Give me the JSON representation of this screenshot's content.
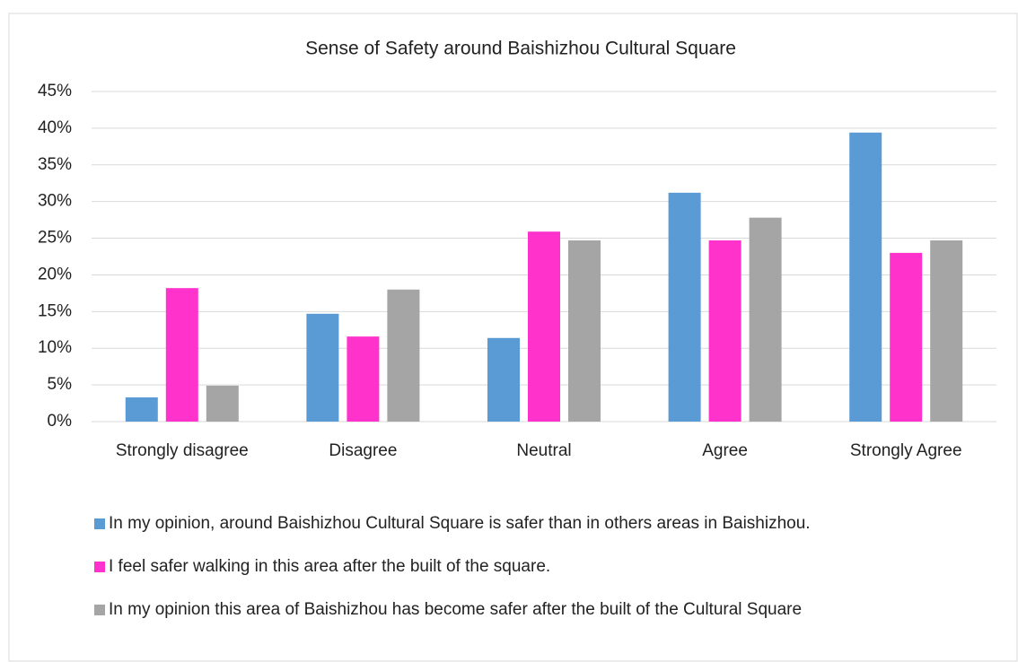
{
  "chart_data": {
    "type": "bar",
    "title": "Sense of Safety around Baishizhou Cultural Square",
    "categories": [
      "Strongly disagree",
      "Disagree",
      "Neutral",
      "Agree",
      "Strongly Agree"
    ],
    "series": [
      {
        "name": "In my opinion, around Baishizhou Cultural Square is safer than in others areas in Baishizhou.",
        "color": "#5b9bd5",
        "values": [
          3.3,
          14.7,
          11.4,
          31.2,
          39.4
        ]
      },
      {
        "name": "I feel safer walking in this area after the built of the square.",
        "color": "#ff33cc",
        "values": [
          18.2,
          11.6,
          25.9,
          24.7,
          23.0
        ]
      },
      {
        "name": "In my opinion this area of Baishizhou has become safer after the built of the Cultural Square",
        "color": "#a5a5a5",
        "values": [
          4.9,
          18.0,
          24.7,
          27.8,
          24.7
        ]
      }
    ],
    "ylim": [
      0,
      45
    ],
    "yticks": [
      {
        "value": 0,
        "label": "0%"
      },
      {
        "value": 5,
        "label": "5%"
      },
      {
        "value": 10,
        "label": "10%"
      },
      {
        "value": 15,
        "label": "15%"
      },
      {
        "value": 20,
        "label": "20%"
      },
      {
        "value": 25,
        "label": "25%"
      },
      {
        "value": 30,
        "label": "30%"
      },
      {
        "value": 35,
        "label": "35%"
      },
      {
        "value": 40,
        "label": "40%"
      },
      {
        "value": 45,
        "label": "45%"
      }
    ],
    "grid": true,
    "legend": "bottom"
  }
}
